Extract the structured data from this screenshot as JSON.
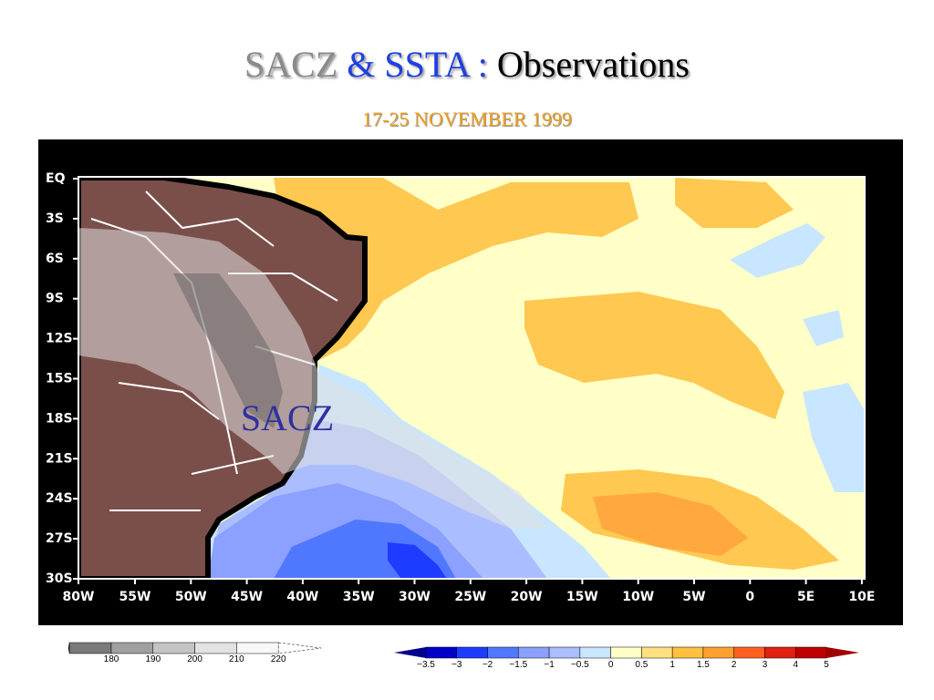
{
  "title": {
    "part1": "SACZ",
    "part2": "& SSTA :",
    "part3": "Observations"
  },
  "subtitle": "17-25 NOVEMBER 1999",
  "map": {
    "lat_labels": [
      "EQ",
      "3S",
      "6S",
      "9S",
      "12S",
      "15S",
      "18S",
      "21S",
      "24S",
      "27S",
      "30S"
    ],
    "lon_labels": [
      "80W",
      "55W",
      "50W",
      "45W",
      "40W",
      "35W",
      "30W",
      "25W",
      "20W",
      "15W",
      "10W",
      "5W",
      "0",
      "5E",
      "10E"
    ],
    "annotation": "SACZ"
  },
  "olr_colorbar": {
    "labels": [
      "180",
      "190",
      "200",
      "210",
      "220"
    ],
    "colors": [
      "#4a4a4a",
      "#7a7a7a",
      "#a0a0a0",
      "#c4c4c4",
      "#e2e2e2",
      "#f8f8f8",
      "#ffffff"
    ]
  },
  "ssta_colorbar": {
    "labels": [
      "−3.5",
      "−3",
      "−2",
      "−1.5",
      "−1",
      "−0.5",
      "0",
      "0.5",
      "1",
      "1.5",
      "2",
      "3",
      "4",
      "5"
    ],
    "colors": [
      "#00008c",
      "#0000c8",
      "#1e3cff",
      "#5078ff",
      "#8ca0ff",
      "#aabeff",
      "#c8e6ff",
      "#ffffc8",
      "#ffe080",
      "#ffc040",
      "#ffa030",
      "#ff6020",
      "#e02010",
      "#c00000",
      "#a00000"
    ]
  }
}
